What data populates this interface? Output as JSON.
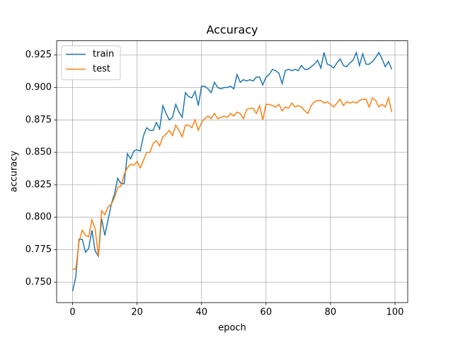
{
  "chart_data": {
    "type": "line",
    "title": "Accuracy",
    "x_label": "epoch",
    "y_label": "accuracy",
    "x": [
      0,
      1,
      2,
      3,
      4,
      5,
      6,
      7,
      8,
      9,
      10,
      11,
      12,
      13,
      14,
      15,
      16,
      17,
      18,
      19,
      20,
      21,
      22,
      23,
      24,
      25,
      26,
      27,
      28,
      29,
      30,
      31,
      32,
      33,
      34,
      35,
      36,
      37,
      38,
      39,
      40,
      41,
      42,
      43,
      44,
      45,
      46,
      47,
      48,
      49,
      50,
      51,
      52,
      53,
      54,
      55,
      56,
      57,
      58,
      59,
      60,
      61,
      62,
      63,
      64,
      65,
      66,
      67,
      68,
      69,
      70,
      71,
      72,
      73,
      74,
      75,
      76,
      77,
      78,
      79,
      80,
      81,
      82,
      83,
      84,
      85,
      86,
      87,
      88,
      89,
      90,
      91,
      92,
      93,
      94,
      95,
      96,
      97,
      98,
      99
    ],
    "series": [
      {
        "name": "train",
        "color": "#1f77b4",
        "values": [
          0.743,
          0.754,
          0.783,
          0.783,
          0.773,
          0.776,
          0.79,
          0.774,
          0.77,
          0.799,
          0.786,
          0.798,
          0.81,
          0.818,
          0.83,
          0.826,
          0.826,
          0.849,
          0.845,
          0.851,
          0.852,
          0.851,
          0.863,
          0.869,
          0.867,
          0.867,
          0.873,
          0.868,
          0.886,
          0.88,
          0.875,
          0.877,
          0.887,
          0.881,
          0.877,
          0.896,
          0.893,
          0.892,
          0.897,
          0.886,
          0.901,
          0.901,
          0.899,
          0.896,
          0.904,
          0.9,
          0.899,
          0.9,
          0.9,
          0.901,
          0.899,
          0.91,
          0.904,
          0.906,
          0.905,
          0.906,
          0.905,
          0.908,
          0.908,
          0.902,
          0.908,
          0.91,
          0.914,
          0.913,
          0.911,
          0.903,
          0.913,
          0.914,
          0.913,
          0.914,
          0.913,
          0.917,
          0.914,
          0.914,
          0.916,
          0.918,
          0.921,
          0.915,
          0.927,
          0.918,
          0.917,
          0.915,
          0.919,
          0.922,
          0.917,
          0.916,
          0.919,
          0.921,
          0.927,
          0.917,
          0.926,
          0.918,
          0.918,
          0.92,
          0.923,
          0.927,
          0.922,
          0.916,
          0.92,
          0.914
        ]
      },
      {
        "name": "test",
        "color": "#ff7f0e",
        "values": [
          0.76,
          0.76,
          0.781,
          0.79,
          0.786,
          0.785,
          0.798,
          0.791,
          0.77,
          0.805,
          0.802,
          0.808,
          0.81,
          0.815,
          0.823,
          0.824,
          0.833,
          0.838,
          0.841,
          0.84,
          0.843,
          0.838,
          0.844,
          0.85,
          0.85,
          0.857,
          0.859,
          0.855,
          0.862,
          0.864,
          0.867,
          0.863,
          0.871,
          0.867,
          0.862,
          0.871,
          0.871,
          0.869,
          0.875,
          0.867,
          0.873,
          0.876,
          0.878,
          0.876,
          0.88,
          0.876,
          0.877,
          0.878,
          0.877,
          0.88,
          0.878,
          0.881,
          0.88,
          0.876,
          0.883,
          0.884,
          0.884,
          0.88,
          0.886,
          0.875,
          0.887,
          0.887,
          0.886,
          0.885,
          0.887,
          0.882,
          0.885,
          0.884,
          0.888,
          0.885,
          0.886,
          0.885,
          0.882,
          0.88,
          0.886,
          0.889,
          0.89,
          0.89,
          0.888,
          0.889,
          0.887,
          0.885,
          0.888,
          0.891,
          0.886,
          0.889,
          0.888,
          0.889,
          0.888,
          0.89,
          0.891,
          0.891,
          0.885,
          0.892,
          0.89,
          0.885,
          0.887,
          0.885,
          0.892,
          0.881
        ]
      }
    ],
    "xlim": [
      -4.95,
      103.95
    ],
    "xticks": [
      0,
      20,
      40,
      60,
      80,
      100
    ],
    "ylim": [
      0.7342,
      0.936
    ],
    "yticks": [
      {
        "value": 0.75,
        "label": "0.750"
      },
      0.775,
      {
        "value": 0.8,
        "label": "0.800"
      },
      0.825,
      {
        "value": 0.85,
        "label": "0.850"
      },
      0.875,
      {
        "value": 0.9,
        "label": "0.900"
      },
      0.925
    ],
    "grid": true,
    "legend": "upper left"
  }
}
